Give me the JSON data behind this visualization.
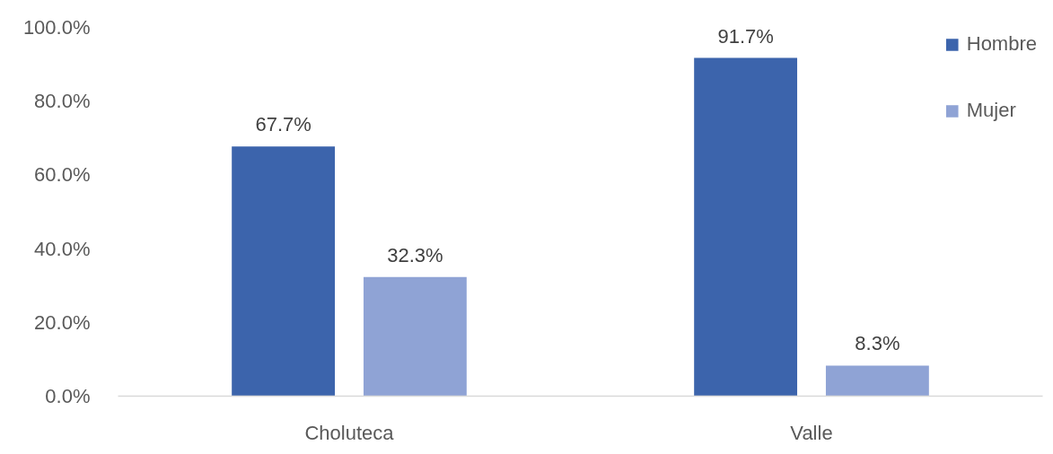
{
  "chart_data": {
    "type": "bar",
    "categories": [
      "Choluteca",
      "Valle"
    ],
    "series": [
      {
        "name": "Hombre",
        "color": "#3c64ac",
        "values": [
          67.7,
          91.7
        ],
        "value_labels": [
          "67.7%",
          "91.7%"
        ]
      },
      {
        "name": "Mujer",
        "color": "#8fa3d5",
        "values": [
          32.3,
          8.3
        ],
        "value_labels": [
          "32.3%",
          "8.3%"
        ]
      }
    ],
    "ylim": [
      0,
      100
    ],
    "yticks": [
      {
        "value": 0,
        "label": "0.0%"
      },
      {
        "value": 20,
        "label": "20.0%"
      },
      {
        "value": 40,
        "label": "40.0%"
      },
      {
        "value": 60,
        "label": "60.0%"
      },
      {
        "value": 80,
        "label": "80.0%"
      },
      {
        "value": 100,
        "label": "100.0%"
      }
    ],
    "legend": "top right"
  }
}
